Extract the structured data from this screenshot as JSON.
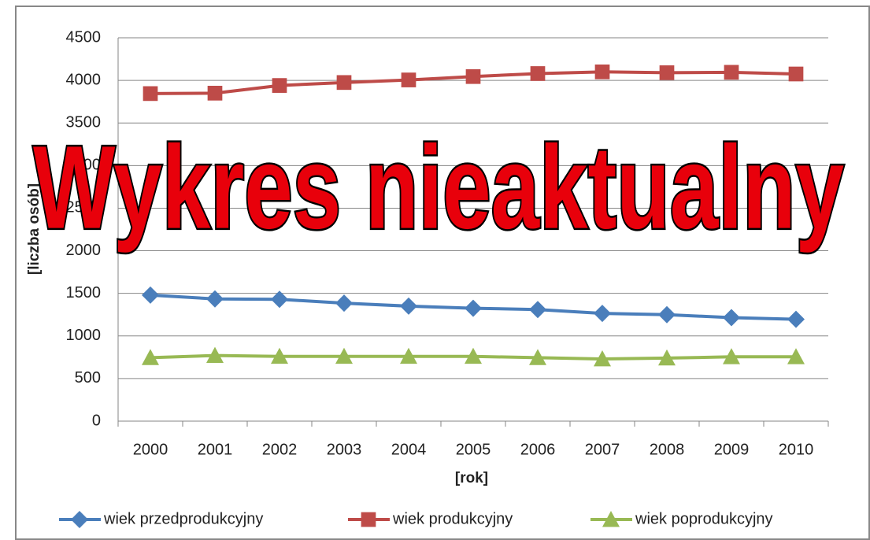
{
  "chart_data": {
    "type": "line",
    "annotation": "Wykres nieaktualny",
    "x_label": "[rok]",
    "y_label": "[liczba osób]",
    "categories": [
      "2000",
      "2001",
      "2002",
      "2003",
      "2004",
      "2005",
      "2006",
      "2007",
      "2008",
      "2009",
      "2010"
    ],
    "series": [
      {
        "name": "wiek przedprodukcyjny",
        "color": "#4a7ebb",
        "marker": "diamond",
        "values": [
          1480,
          1435,
          1430,
          1385,
          1350,
          1325,
          1310,
          1265,
          1250,
          1215,
          1195
        ]
      },
      {
        "name": "wiek produkcyjny",
        "color": "#be4b48",
        "marker": "square",
        "values": [
          3845,
          3850,
          3940,
          3975,
          4005,
          4045,
          4080,
          4100,
          4090,
          4095,
          4075
        ]
      },
      {
        "name": "wiek poprodukcyjny",
        "color": "#98b954",
        "marker": "triangle",
        "values": [
          745,
          770,
          760,
          760,
          760,
          760,
          745,
          730,
          740,
          755,
          755
        ]
      }
    ],
    "ylim": [
      0,
      4500
    ],
    "yticks": [
      0,
      500,
      1000,
      1500,
      2000,
      2500,
      3000,
      3500,
      4000,
      4500
    ],
    "grid": true,
    "legend": "bottom"
  }
}
